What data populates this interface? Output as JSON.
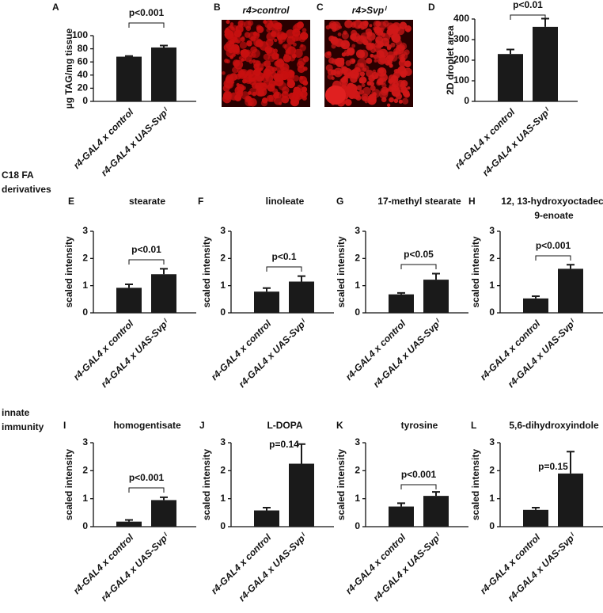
{
  "chart_data": [
    {
      "type": "bar",
      "label": "A",
      "ylabel": "µg TAG/mg tissue",
      "categories": [
        "r4-GAL4 x control",
        "r4-GAL4 x UAS-Svpⁱ"
      ],
      "values": [
        68,
        82
      ],
      "errors": [
        1,
        3
      ],
      "color": "#1a1a1a",
      "ylim": [
        0,
        100
      ],
      "yticks": [
        0,
        20,
        40,
        60,
        80,
        100
      ],
      "annotation": "p<0.001",
      "bracket": true
    },
    {
      "type": "bar",
      "label": "D",
      "ylabel": "2D droplet area",
      "categories": [
        "r4-GAL4 x control",
        "r4-GAL4 x UAS-Svpⁱ"
      ],
      "values": [
        230,
        362
      ],
      "errors": [
        22,
        40
      ],
      "color": "#1a1a1a",
      "ylim": [
        0,
        400
      ],
      "yticks": [
        0,
        100,
        200,
        300,
        400
      ],
      "annotation": "p<0.01",
      "bracket": true
    },
    {
      "type": "bar",
      "label": "E",
      "title": "stearate",
      "ylabel": "scaled intensity",
      "categories": [
        "r4-GAL4 x control",
        "r4-GAL4 x UAS-Svpⁱ"
      ],
      "values": [
        0.92,
        1.42
      ],
      "errors": [
        0.13,
        0.2
      ],
      "color": "#1a1a1a",
      "ylim": [
        0,
        3
      ],
      "yticks": [
        0,
        1,
        2,
        3
      ],
      "annotation": "p<0.01",
      "bracket": true
    },
    {
      "type": "bar",
      "label": "F",
      "title": "linoleate",
      "ylabel": "scaled intensity",
      "categories": [
        "r4-GAL4 x control",
        "r4-GAL4 x UAS-Svpⁱ"
      ],
      "values": [
        0.78,
        1.15
      ],
      "errors": [
        0.13,
        0.2
      ],
      "color": "#1a1a1a",
      "ylim": [
        0,
        3
      ],
      "yticks": [
        0,
        1,
        2,
        3
      ],
      "annotation": "p<0.1",
      "bracket": true
    },
    {
      "type": "bar",
      "label": "G",
      "title": "17-methyl stearate",
      "ylabel": "scaled intensity",
      "categories": [
        "r4-GAL4 x control",
        "r4-GAL4 x UAS-Svpⁱ"
      ],
      "values": [
        0.68,
        1.22
      ],
      "errors": [
        0.05,
        0.22
      ],
      "color": "#1a1a1a",
      "ylim": [
        0,
        3
      ],
      "yticks": [
        0,
        1,
        2,
        3
      ],
      "annotation": "p<0.05",
      "bracket": true
    },
    {
      "type": "bar",
      "label": "H",
      "title": [
        "12, 13-hydroxyoctadec-",
        "9-enoate"
      ],
      "ylabel": "scaled intensity",
      "categories": [
        "r4-GAL4 x control",
        "r4-GAL4 x UAS-Svpⁱ"
      ],
      "values": [
        0.53,
        1.62
      ],
      "errors": [
        0.08,
        0.15
      ],
      "color": "#1a1a1a",
      "ylim": [
        0,
        3
      ],
      "yticks": [
        0,
        1,
        2,
        3
      ],
      "annotation": "p<0.001",
      "bracket": true
    },
    {
      "type": "bar",
      "label": "I",
      "title": "homogentisate",
      "ylabel": "scaled intensity",
      "categories": [
        "r4-GAL4 x control",
        "r4-GAL4 x UAS-Svpⁱ"
      ],
      "values": [
        0.18,
        0.95
      ],
      "errors": [
        0.06,
        0.1
      ],
      "color": "#1a1a1a",
      "ylim": [
        0,
        3
      ],
      "yticks": [
        0,
        1,
        2,
        3
      ],
      "annotation": "p<0.001",
      "bracket": true
    },
    {
      "type": "bar",
      "label": "J",
      "title": "L-DOPA",
      "ylabel": "scaled intensity",
      "categories": [
        "r4-GAL4 x control",
        "r4-GAL4 x UAS-Svpⁱ"
      ],
      "values": [
        0.58,
        2.25
      ],
      "errors": [
        0.1,
        0.7
      ],
      "color": "#1a1a1a",
      "ylim": [
        0,
        3
      ],
      "yticks": [
        0,
        1,
        2,
        3
      ],
      "annotation": "p=0.14",
      "bracket": false
    },
    {
      "type": "bar",
      "label": "K",
      "title": "tyrosine",
      "ylabel": "scaled intensity",
      "categories": [
        "r4-GAL4 x control",
        "r4-GAL4 x UAS-Svpⁱ"
      ],
      "values": [
        0.72,
        1.1
      ],
      "errors": [
        0.12,
        0.14
      ],
      "color": "#1a1a1a",
      "ylim": [
        0,
        3
      ],
      "yticks": [
        0,
        1,
        2,
        3
      ],
      "annotation": "p<0.001",
      "bracket": true
    },
    {
      "type": "bar",
      "label": "L",
      "title": "5,6-dihydroxyindole",
      "ylabel": "scaled intensity",
      "categories": [
        "r4-GAL4 x control",
        "r4-GAL4 x UAS-Svpⁱ"
      ],
      "values": [
        0.6,
        1.9
      ],
      "errors": [
        0.08,
        0.78
      ],
      "color": "#1a1a1a",
      "ylim": [
        0,
        3
      ],
      "yticks": [
        0,
        1,
        2,
        3
      ],
      "annotation": "p=0.15",
      "bracket": false
    }
  ],
  "images": [
    {
      "label": "B",
      "caption": "r4>control"
    },
    {
      "label": "C",
      "caption": "r4>Svpⁱ"
    }
  ],
  "row_labels": [
    [
      "C18 FA",
      "derivatives"
    ],
    [
      "innate",
      "immunity"
    ]
  ]
}
